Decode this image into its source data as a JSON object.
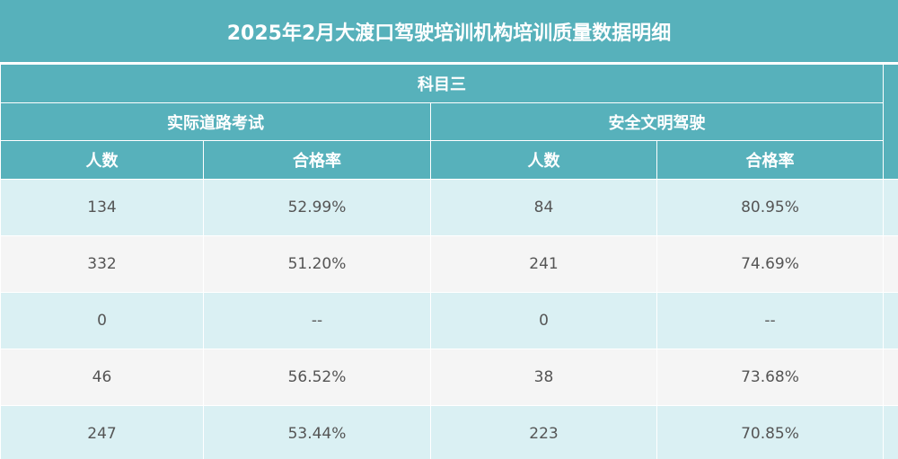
{
  "title": "2025年2月大渡口驾驶培训机构培训质量数据明细",
  "header": {
    "subject": "科目三",
    "groups": [
      "实际道路考试",
      "安全文明驾驶"
    ],
    "columns": [
      "人数",
      "合格率",
      "人数",
      "合格率"
    ]
  },
  "rows": [
    [
      "134",
      "52.99%",
      "84",
      "80.95%"
    ],
    [
      "332",
      "51.20%",
      "241",
      "74.69%"
    ],
    [
      "0",
      "--",
      "0",
      "--"
    ],
    [
      "46",
      "56.52%",
      "38",
      "73.68%"
    ],
    [
      "247",
      "53.44%",
      "223",
      "70.85%"
    ]
  ]
}
